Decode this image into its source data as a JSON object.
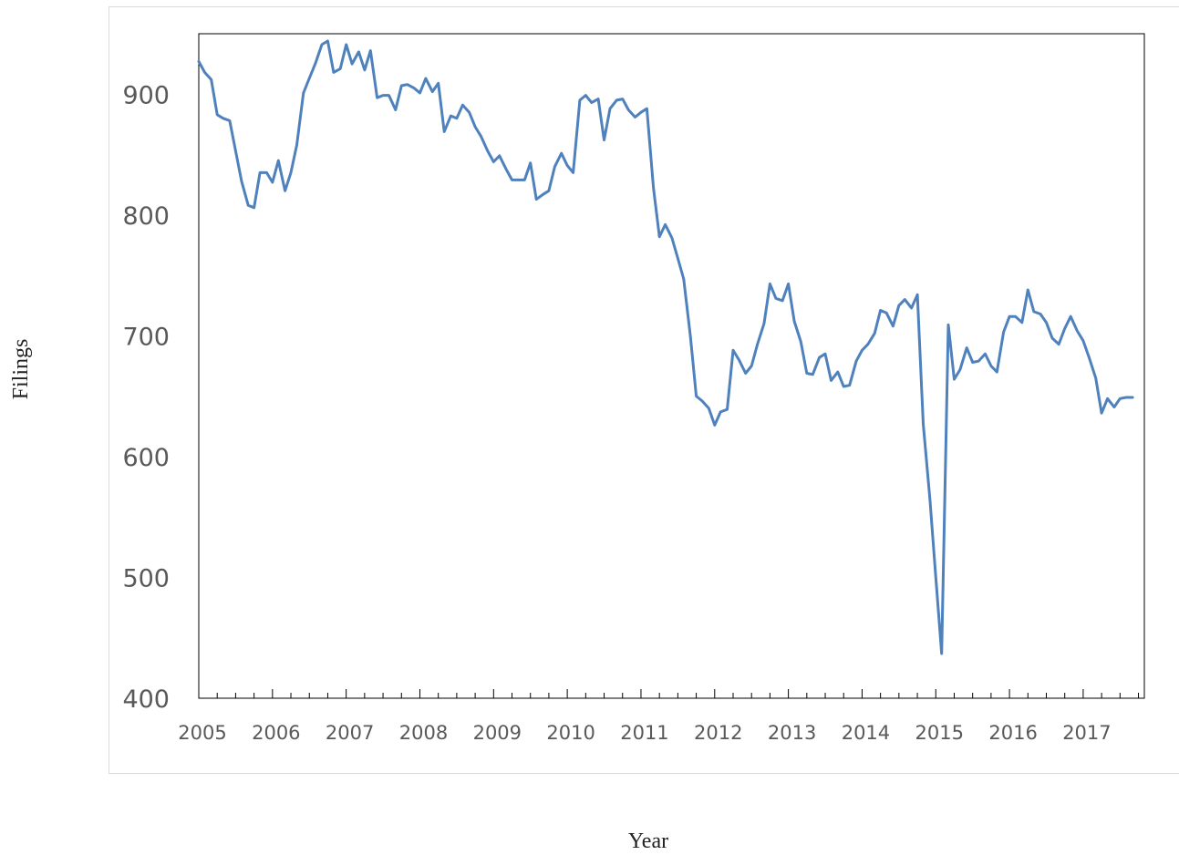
{
  "chart_data": {
    "type": "line",
    "title": "",
    "xlabel": "Year",
    "ylabel": "Filings",
    "xlim": [
      2005.0,
      2017.83
    ],
    "ylim": [
      400,
      950
    ],
    "y_ticks": [
      400,
      500,
      600,
      700,
      800,
      900
    ],
    "x_tick_labels": [
      "2005",
      "2006",
      "2007",
      "2008",
      "2009",
      "2010",
      "2011",
      "2012",
      "2013",
      "2014",
      "2015",
      "2016",
      "2017"
    ],
    "grid": false,
    "legend": "none",
    "series": [
      {
        "color": "#4f81bd",
        "x": [
          2005.0,
          2005.08,
          2005.17,
          2005.25,
          2005.33,
          2005.42,
          2005.5,
          2005.58,
          2005.67,
          2005.75,
          2005.83,
          2005.92,
          2006.0,
          2006.08,
          2006.17,
          2006.25,
          2006.33,
          2006.42,
          2006.5,
          2006.58,
          2006.67,
          2006.75,
          2006.83,
          2006.92,
          2007.0,
          2007.08,
          2007.17,
          2007.25,
          2007.33,
          2007.42,
          2007.5,
          2007.58,
          2007.67,
          2007.75,
          2007.83,
          2007.92,
          2008.0,
          2008.08,
          2008.17,
          2008.25,
          2008.33,
          2008.42,
          2008.5,
          2008.58,
          2008.67,
          2008.75,
          2008.83,
          2008.92,
          2009.0,
          2009.08,
          2009.17,
          2009.25,
          2009.33,
          2009.42,
          2009.5,
          2009.58,
          2009.67,
          2009.75,
          2009.83,
          2009.92,
          2010.0,
          2010.08,
          2010.17,
          2010.25,
          2010.33,
          2010.42,
          2010.5,
          2010.58,
          2010.67,
          2010.75,
          2010.83,
          2010.92,
          2011.0,
          2011.08,
          2011.17,
          2011.25,
          2011.33,
          2011.42,
          2011.5,
          2011.58,
          2011.67,
          2011.75,
          2011.83,
          2011.92,
          2012.0,
          2012.08,
          2012.17,
          2012.25,
          2012.33,
          2012.42,
          2012.5,
          2012.58,
          2012.67,
          2012.75,
          2012.83,
          2012.92,
          2013.0,
          2013.08,
          2013.17,
          2013.25,
          2013.33,
          2013.42,
          2013.5,
          2013.58,
          2013.67,
          2013.75,
          2013.83,
          2013.92,
          2014.0,
          2014.08,
          2014.17,
          2014.25,
          2014.33,
          2014.42,
          2014.5,
          2014.58,
          2014.67,
          2014.75,
          2014.83,
          2014.92,
          2015.0,
          2015.08,
          2015.17,
          2015.25,
          2015.33,
          2015.42,
          2015.5,
          2015.58,
          2015.67,
          2015.75,
          2015.83,
          2015.92,
          2016.0,
          2016.08,
          2016.17,
          2016.25,
          2016.33,
          2016.42,
          2016.5,
          2016.58,
          2016.67,
          2016.75,
          2016.83,
          2016.92,
          2017.0,
          2017.08,
          2017.17,
          2017.25,
          2017.33,
          2017.42,
          2017.5,
          2017.58,
          2017.67
        ],
        "values": [
          927,
          918,
          912,
          883,
          880,
          878,
          853,
          828,
          808,
          806,
          835,
          835,
          827,
          845,
          820,
          835,
          858,
          901,
          913,
          925,
          941,
          944,
          918,
          921,
          941,
          925,
          935,
          920,
          936,
          897,
          899,
          899,
          887,
          907,
          908,
          905,
          901,
          913,
          902,
          909,
          869,
          882,
          880,
          891,
          885,
          873,
          865,
          853,
          844,
          849,
          838,
          829,
          829,
          829,
          843,
          813,
          817,
          820,
          840,
          851,
          841,
          835,
          895,
          899,
          893,
          896,
          862,
          888,
          895,
          896,
          887,
          881,
          885,
          888,
          822,
          782,
          792,
          781,
          764,
          747,
          700,
          650,
          646,
          640,
          626,
          637,
          639,
          688,
          680,
          669,
          675,
          693,
          710,
          743,
          731,
          729,
          743,
          712,
          695,
          669,
          668,
          682,
          685,
          663,
          670,
          658,
          659,
          679,
          688,
          693,
          702,
          721,
          719,
          708,
          725,
          730,
          723,
          734,
          627,
          565,
          500,
          437,
          709,
          664,
          672,
          690,
          678,
          679,
          685,
          675,
          670,
          703,
          716,
          716,
          711,
          738,
          720,
          718,
          711,
          698,
          693,
          706,
          716,
          704,
          696,
          682,
          665,
          636,
          648,
          641,
          648,
          649,
          649
        ]
      }
    ]
  }
}
